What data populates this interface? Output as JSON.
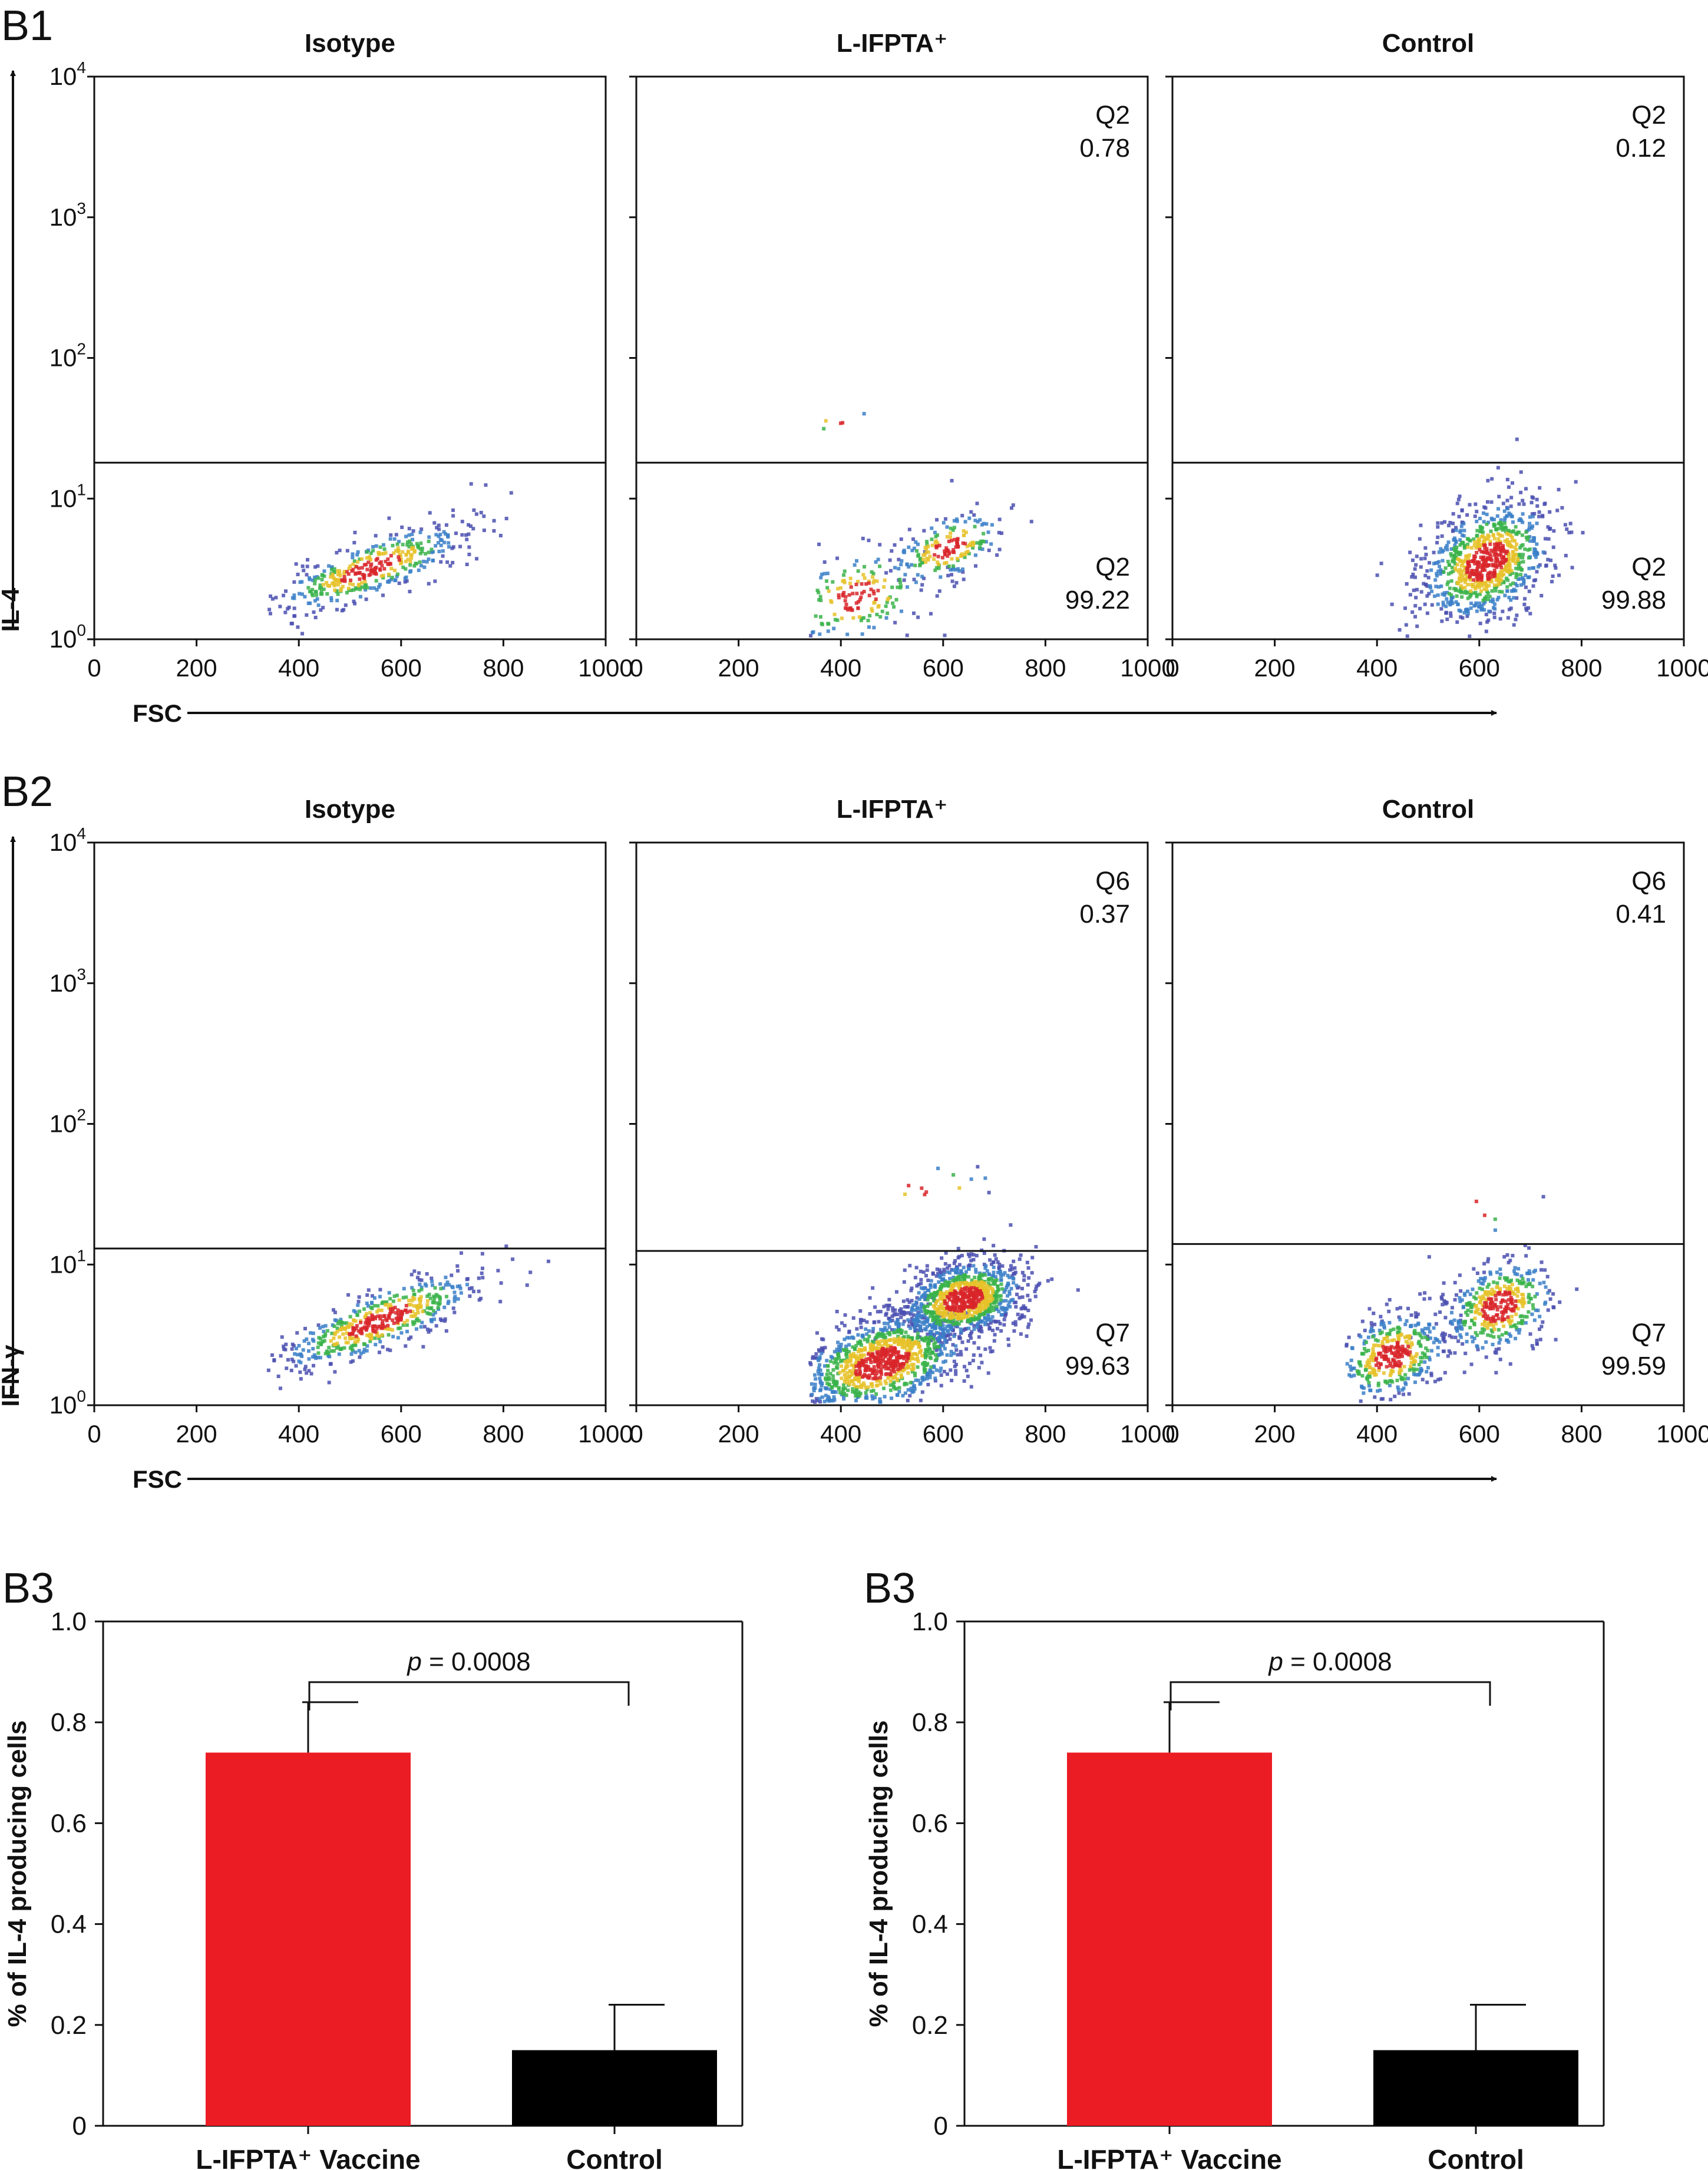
{
  "rows": [
    {
      "label": "B1",
      "ylabel": "IL-4",
      "xlabel": "FSC",
      "panels": [
        {
          "title": "Isotype",
          "gate_level": 18,
          "quadrants": []
        },
        {
          "title": "L-IFPTA⁺",
          "gate_level": 18,
          "quadrants": [
            {
              "name": "Q2",
              "value": "0.78",
              "pos": "top"
            },
            {
              "name": "Q2",
              "value": "99.22",
              "pos": "bottom"
            }
          ]
        },
        {
          "title": "Control",
          "gate_level": 18,
          "quadrants": [
            {
              "name": "Q2",
              "value": "0.12",
              "pos": "top"
            },
            {
              "name": "Q2",
              "value": "99.88",
              "pos": "bottom"
            }
          ]
        }
      ]
    },
    {
      "label": "B2",
      "ylabel": "IFN-γ",
      "xlabel": "FSC",
      "panels": [
        {
          "title": "Isotype",
          "gate_level": 13,
          "quadrants": []
        },
        {
          "title": "L-IFPTA⁺",
          "gate_level": 12.5,
          "quadrants": [
            {
              "name": "Q6",
              "value": "0.37",
              "pos": "top"
            },
            {
              "name": "Q7",
              "value": "99.63",
              "pos": "bottom"
            }
          ]
        },
        {
          "title": "Control",
          "gate_level": 14,
          "quadrants": [
            {
              "name": "Q6",
              "value": "0.41",
              "pos": "top"
            },
            {
              "name": "Q7",
              "value": "99.59",
              "pos": "bottom"
            }
          ]
        }
      ]
    }
  ],
  "flow_axes": {
    "x_ticks": [
      "0",
      "200",
      "400",
      "600",
      "800",
      "1000"
    ],
    "xlim": [
      0,
      1000
    ],
    "y_ticks": [
      {
        "base": "10",
        "exp": "0"
      },
      {
        "base": "10",
        "exp": "1"
      },
      {
        "base": "10",
        "exp": "2"
      },
      {
        "base": "10",
        "exp": "3"
      },
      {
        "base": "10",
        "exp": "4"
      }
    ],
    "ylim": [
      1,
      10000
    ],
    "yscale": "log"
  },
  "chart_data": [
    {
      "type": "bar",
      "label": "B3",
      "categories": [
        "L-IFPTA⁺ Vaccine",
        "Control"
      ],
      "values": [
        0.74,
        0.15
      ],
      "errors": [
        0.1,
        0.09
      ],
      "colors": [
        "#ec1c24",
        "#000000"
      ],
      "ylabel": "% of IL-4 producing cells",
      "ylim": [
        0,
        1.0
      ],
      "y_ticks": [
        "0",
        "0.2",
        "0.4",
        "0.6",
        "0.8",
        "1.0"
      ],
      "annotation": {
        "p_symbol": "p",
        "p_rest": " = 0.0008"
      }
    },
    {
      "type": "bar",
      "label": "B3",
      "categories": [
        "L-IFPTA⁺ Vaccine",
        "Control"
      ],
      "values": [
        0.74,
        0.15
      ],
      "errors": [
        0.1,
        0.09
      ],
      "colors": [
        "#ec1c24",
        "#000000"
      ],
      "ylabel": "% of IL-4 producing cells",
      "ylim": [
        0,
        1.0
      ],
      "y_ticks": [
        "0",
        "0.2",
        "0.4",
        "0.6",
        "0.8",
        "1.0"
      ],
      "annotation": {
        "p_symbol": "p",
        "p_rest": " = 0.0008"
      }
    }
  ]
}
